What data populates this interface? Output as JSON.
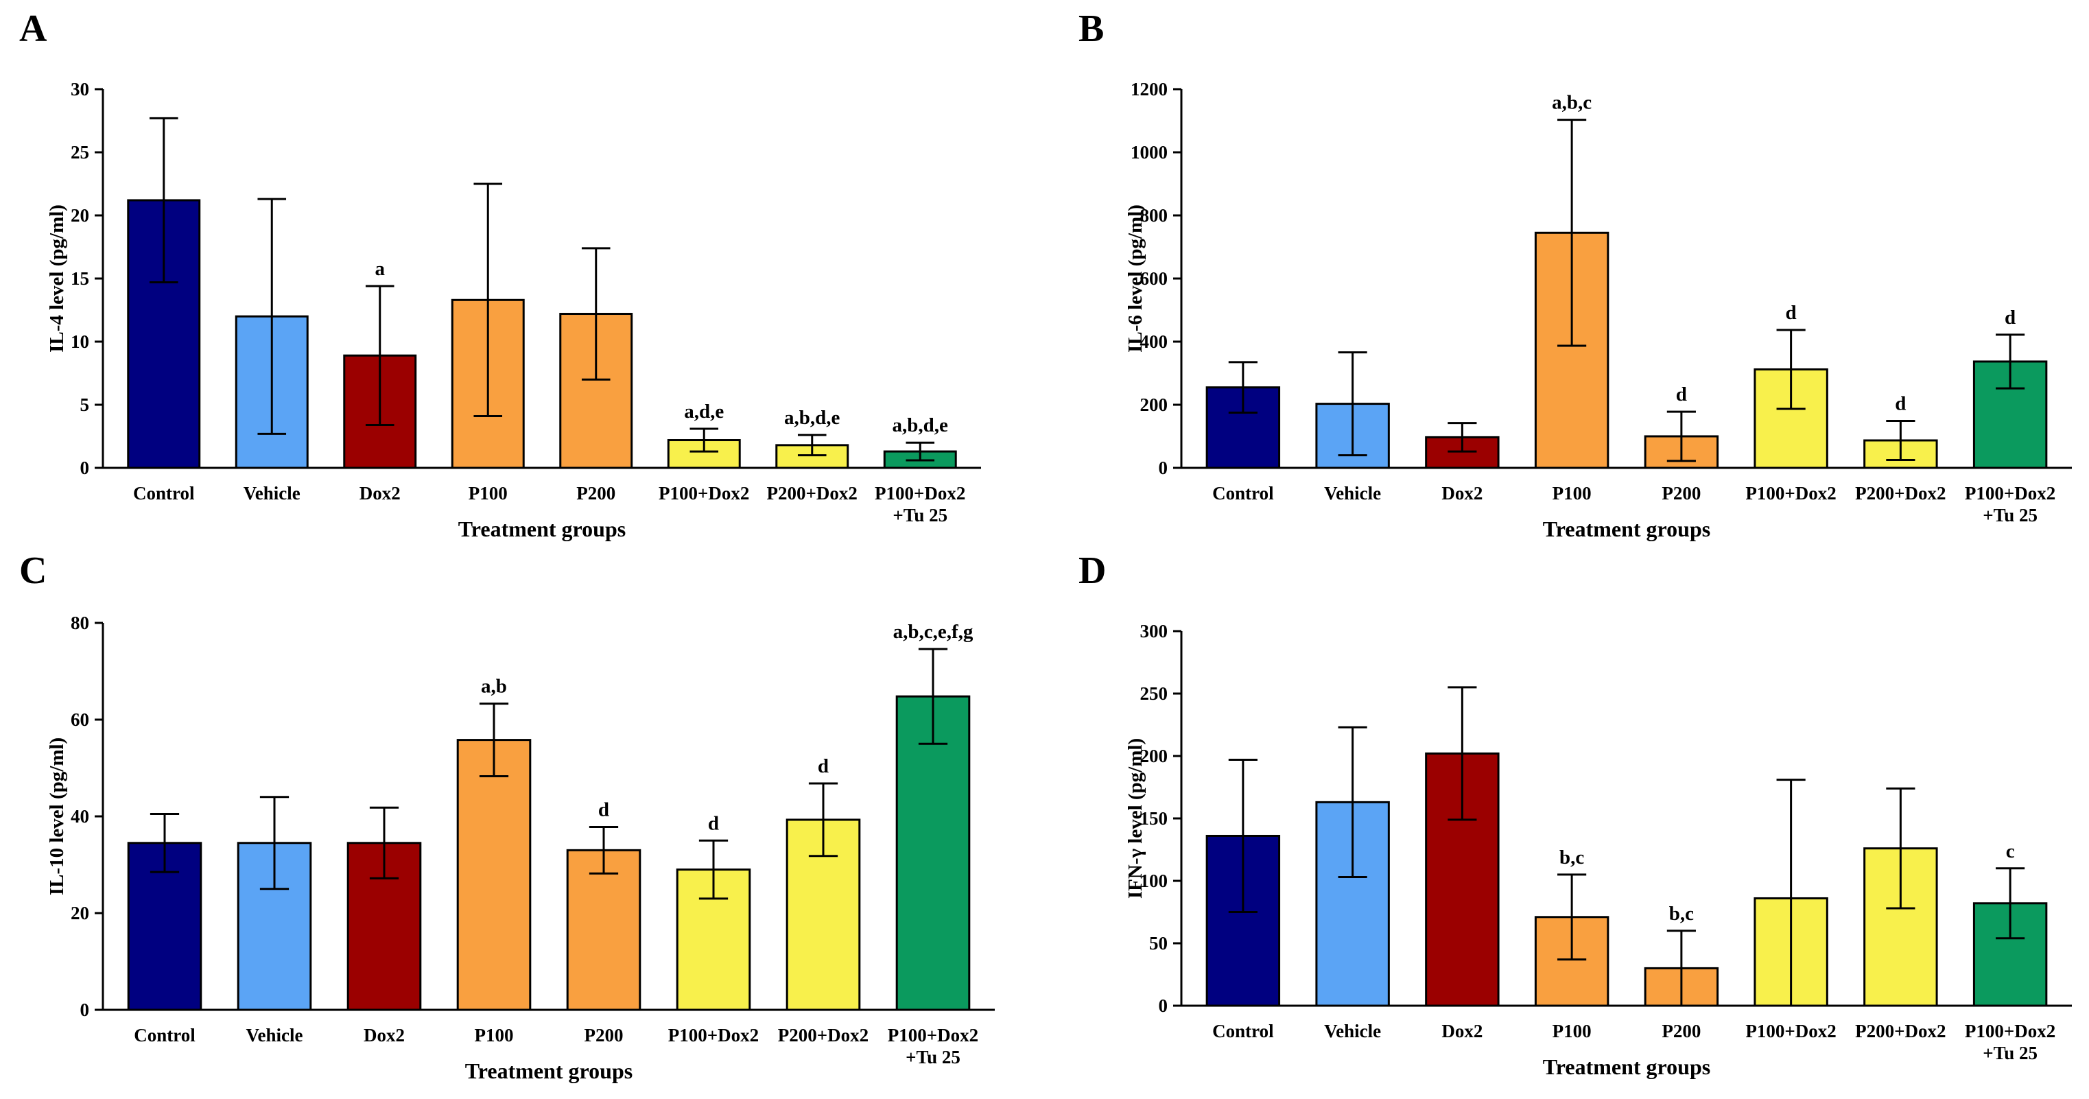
{
  "chart_data": [
    {
      "panel": "A",
      "type": "bar",
      "ylabel": "IL-4 level (pg/ml)",
      "xlabel": "Treatment groups",
      "ylim": [
        0,
        30
      ],
      "yticks": [
        0,
        5,
        10,
        15,
        20,
        25,
        30
      ],
      "categories": [
        [
          "Control"
        ],
        [
          "Vehicle"
        ],
        [
          "Dox2"
        ],
        [
          "P100"
        ],
        [
          "P200"
        ],
        [
          "P100+Dox2"
        ],
        [
          "P200+Dox2"
        ],
        [
          "P100+Dox2",
          "+Tu 25"
        ]
      ],
      "values": [
        21.2,
        12.0,
        8.9,
        13.3,
        12.2,
        2.2,
        1.8,
        1.3
      ],
      "errors": [
        6.5,
        9.3,
        5.5,
        9.2,
        5.2,
        0.9,
        0.8,
        0.7
      ],
      "labels": [
        "",
        "",
        "a",
        "",
        "",
        "a,d,e",
        "a,b,d,e",
        "a,b,d,e"
      ],
      "colors": [
        "#000080",
        "#5ba4f5",
        "#9b0000",
        "#f9a040",
        "#f9a040",
        "#f8f04c",
        "#f8f04c",
        "#0b9a5e"
      ]
    },
    {
      "panel": "B",
      "type": "bar",
      "ylabel": "IL-6 level (pg/ml)",
      "xlabel": "Treatment groups",
      "ylim": [
        0,
        1200
      ],
      "yticks": [
        0,
        200,
        400,
        600,
        800,
        1000,
        1200
      ],
      "categories": [
        [
          "Control"
        ],
        [
          "Vehicle"
        ],
        [
          "Dox2"
        ],
        [
          "P100"
        ],
        [
          "P200"
        ],
        [
          "P100+Dox2"
        ],
        [
          "P200+Dox2"
        ],
        [
          "P100+Dox2",
          "+Tu 25"
        ]
      ],
      "values": [
        255,
        203,
        97,
        745,
        100,
        312,
        87,
        337
      ],
      "errors": [
        80,
        163,
        45,
        358,
        78,
        125,
        62,
        85
      ],
      "labels": [
        "",
        "",
        "",
        "a,b,c",
        "d",
        "d",
        "d",
        "d"
      ],
      "colors": [
        "#000080",
        "#5ba4f5",
        "#9b0000",
        "#f9a040",
        "#f9a040",
        "#f8f04c",
        "#f8f04c",
        "#0b9a5e"
      ]
    },
    {
      "panel": "C",
      "type": "bar",
      "ylabel": "IL-10 level (pg/ml)",
      "xlabel": "Treatment groups",
      "ylim": [
        0,
        80
      ],
      "yticks": [
        0,
        20,
        40,
        60,
        80
      ],
      "categories": [
        [
          "Control"
        ],
        [
          "Vehicle"
        ],
        [
          "Dox2"
        ],
        [
          "P100"
        ],
        [
          "P200"
        ],
        [
          "P100+Dox2"
        ],
        [
          "P200+Dox2"
        ],
        [
          "P100+Dox2",
          "+Tu 25"
        ]
      ],
      "values": [
        34.5,
        34.5,
        34.5,
        55.8,
        33.0,
        29.0,
        39.3,
        64.8
      ],
      "errors": [
        6.0,
        9.5,
        7.3,
        7.5,
        4.8,
        6.0,
        7.5,
        9.8
      ],
      "labels": [
        "",
        "",
        "",
        "a,b",
        "d",
        "d",
        "d",
        "a,b,c,e,f,g"
      ],
      "colors": [
        "#000080",
        "#5ba4f5",
        "#9b0000",
        "#f9a040",
        "#f9a040",
        "#f8f04c",
        "#f8f04c",
        "#0b9a5e"
      ]
    },
    {
      "panel": "D",
      "type": "bar",
      "ylabel": "IFN-γ level (pg/ml)",
      "xlabel": "Treatment groups",
      "ylim": [
        0,
        300
      ],
      "yticks": [
        0,
        50,
        100,
        150,
        200,
        250,
        300
      ],
      "categories": [
        [
          "Control"
        ],
        [
          "Vehicle"
        ],
        [
          "Dox2"
        ],
        [
          "P100"
        ],
        [
          "P200"
        ],
        [
          "P100+Dox2"
        ],
        [
          "P200+Dox2"
        ],
        [
          "P100+Dox2",
          "+Tu 25"
        ]
      ],
      "values": [
        136,
        163,
        202,
        71,
        30,
        86,
        126,
        82
      ],
      "errors": [
        61,
        60,
        53,
        34,
        30,
        95,
        48,
        28
      ],
      "labels": [
        "",
        "",
        "",
        "b,c",
        "b,c",
        "",
        "",
        "c"
      ],
      "colors": [
        "#000080",
        "#5ba4f5",
        "#9b0000",
        "#f9a040",
        "#f9a040",
        "#f8f04c",
        "#f8f04c",
        "#0b9a5e"
      ]
    }
  ]
}
